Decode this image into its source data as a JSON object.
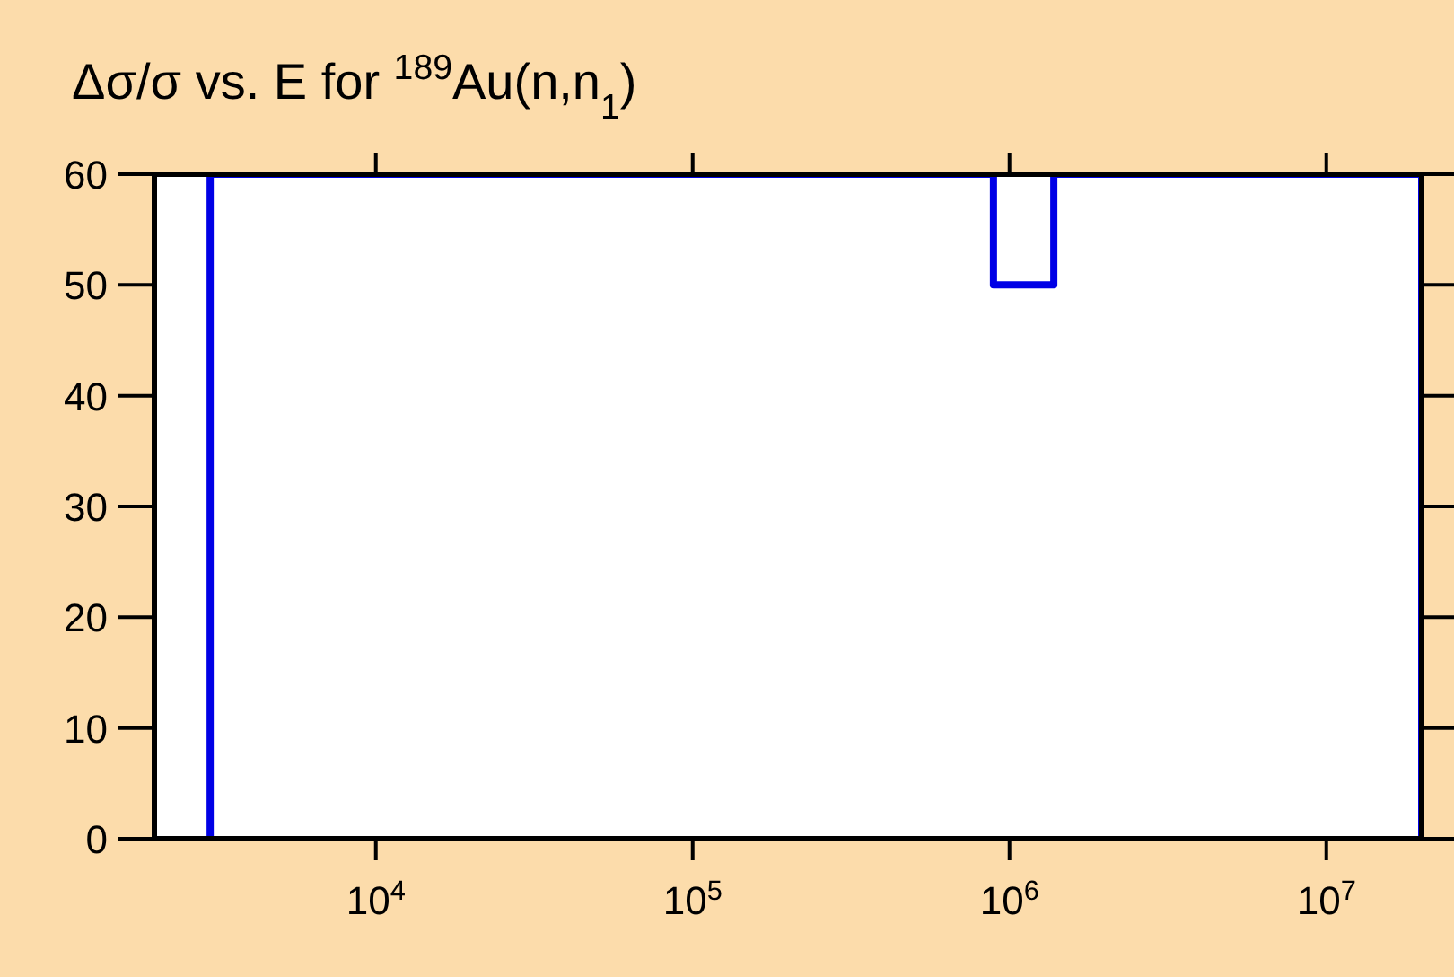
{
  "chart_data": {
    "type": "step",
    "title": "Δσ/σ vs. E for $^{189}$Au(n,n$_{1}$)",
    "x": [
      3000,
      3000,
      890000,
      1380000,
      20000000,
      20000000
    ],
    "series": [
      {
        "color": "#0000e6",
        "values": [
          0,
          60,
          50,
          60,
          60,
          0
        ]
      }
    ],
    "log": "x",
    "xlim": [
      2000,
      20000000
    ],
    "xticks": [
      {
        "value": 10000,
        "label": "10$^{4}$"
      },
      {
        "value": 100000,
        "label": "10$^{5}$"
      },
      {
        "value": 1000000,
        "label": "10$^{6}$"
      },
      {
        "value": 10000000,
        "label": "10$^{7}$"
      }
    ],
    "ylim": [
      0,
      60
    ],
    "yticks": [
      0,
      10,
      20,
      30,
      40,
      50,
      60
    ],
    "grid": false,
    "legend": false
  }
}
